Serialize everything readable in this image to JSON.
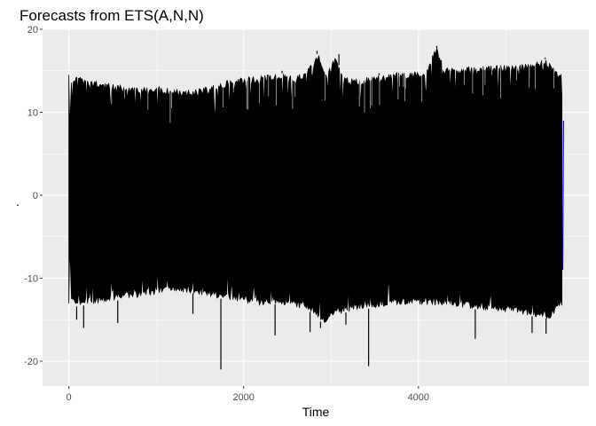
{
  "chart_data": {
    "type": "line",
    "title": "Forecasts from ETS(A,N,N)",
    "xlabel": "Time",
    "ylabel": ".",
    "xlim": [
      -300,
      5950
    ],
    "ylim": [
      -23,
      20
    ],
    "x_ticks": [
      0,
      2000,
      4000
    ],
    "x_tick_labels": [
      "0",
      "2000",
      "4000"
    ],
    "y_ticks": [
      -20,
      -10,
      0,
      10,
      20
    ],
    "y_tick_labels": [
      "-20",
      "-10",
      "0",
      "10",
      "20"
    ],
    "grid": true,
    "background": "#ebebeb",
    "gridline_color": "#ffffff",
    "series": [
      {
        "color": "#000000",
        "x_start": 0,
        "x_end": 5650,
        "upper_envelope": [
          [
            0,
            6
          ],
          [
            30,
            14.3
          ],
          [
            100,
            14.5
          ],
          [
            200,
            14.0
          ],
          [
            400,
            13.6
          ],
          [
            600,
            13.3
          ],
          [
            800,
            13.0
          ],
          [
            1000,
            13.2
          ],
          [
            1200,
            12.8
          ],
          [
            1400,
            12.7
          ],
          [
            1600,
            13.1
          ],
          [
            1800,
            13.8
          ],
          [
            2000,
            14.2
          ],
          [
            2200,
            14.4
          ],
          [
            2400,
            14.8
          ],
          [
            2600,
            14.3
          ],
          [
            2800,
            16.0
          ],
          [
            2850,
            17.3
          ],
          [
            2950,
            14.8
          ],
          [
            3050,
            16.7
          ],
          [
            3150,
            14.2
          ],
          [
            3300,
            14.1
          ],
          [
            3500,
            14.4
          ],
          [
            3700,
            14.7
          ],
          [
            3900,
            14.9
          ],
          [
            4100,
            15.1
          ],
          [
            4200,
            18.0
          ],
          [
            4300,
            15.3
          ],
          [
            4500,
            15.4
          ],
          [
            4700,
            15.6
          ],
          [
            4900,
            15.7
          ],
          [
            5100,
            15.7
          ],
          [
            5300,
            16.1
          ],
          [
            5450,
            16.4
          ],
          [
            5650,
            14.5
          ]
        ],
        "lower_envelope": [
          [
            0,
            -3
          ],
          [
            30,
            -12.8
          ],
          [
            100,
            -13.5
          ],
          [
            200,
            -13.2
          ],
          [
            400,
            -13.0
          ],
          [
            600,
            -12.6
          ],
          [
            800,
            -12.3
          ],
          [
            1000,
            -12.0
          ],
          [
            1200,
            -11.6
          ],
          [
            1400,
            -11.8
          ],
          [
            1600,
            -12.2
          ],
          [
            1800,
            -12.6
          ],
          [
            2000,
            -12.9
          ],
          [
            2200,
            -13.3
          ],
          [
            2400,
            -13.1
          ],
          [
            2600,
            -13.5
          ],
          [
            2800,
            -14.2
          ],
          [
            2900,
            -15.5
          ],
          [
            3100,
            -14.3
          ],
          [
            3300,
            -13.8
          ],
          [
            3500,
            -13.6
          ],
          [
            3700,
            -13.4
          ],
          [
            3900,
            -13.3
          ],
          [
            4100,
            -13.2
          ],
          [
            4300,
            -13.4
          ],
          [
            4500,
            -13.6
          ],
          [
            4700,
            -13.8
          ],
          [
            4900,
            -14.0
          ],
          [
            5100,
            -14.2
          ],
          [
            5300,
            -14.6
          ],
          [
            5500,
            -14.9
          ],
          [
            5650,
            -13.3
          ]
        ],
        "spikes": [
          [
            1740,
            -21.0
          ],
          [
            3430,
            -20.6
          ],
          [
            4650,
            -17.3
          ],
          [
            5460,
            -16.7
          ],
          [
            2880,
            -16.0
          ],
          [
            2760,
            -16.5
          ],
          [
            170,
            -16.0
          ],
          [
            2360,
            -16.9
          ],
          [
            3170,
            -15.6
          ],
          [
            5300,
            -16.6
          ],
          [
            2840,
            17.4
          ],
          [
            3090,
            17.0
          ],
          [
            4210,
            18.0
          ],
          [
            5450,
            16.6
          ],
          [
            3550,
            14.7
          ],
          [
            4330,
            15.3
          ],
          [
            2440,
            15.0
          ],
          [
            1420,
            -14.3
          ],
          [
            560,
            -15.4
          ],
          [
            90,
            -15.0
          ]
        ]
      },
      {
        "color": "#0000ff",
        "x_start": 5650,
        "x_end": 5660,
        "value": 0
      }
    ]
  }
}
